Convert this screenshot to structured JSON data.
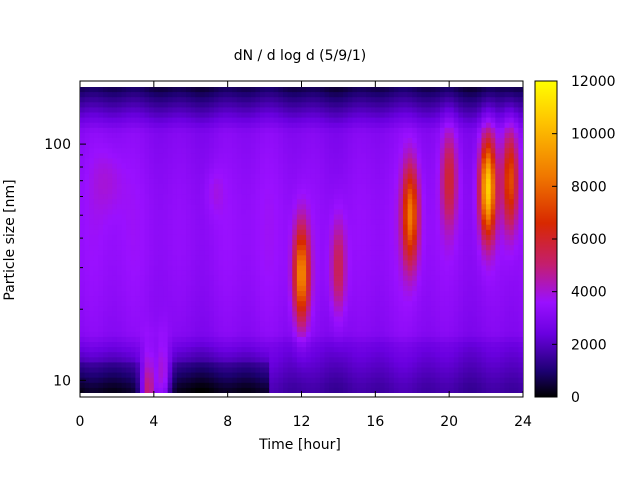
{
  "chart_data": {
    "type": "heatmap",
    "title": "dN / d log d (5/9/1)",
    "xlabel": "Time [hour]",
    "ylabel": "Particle size [nm]",
    "xlim": [
      0,
      24
    ],
    "ylim": [
      8.5,
      185
    ],
    "y_scale": "log",
    "x_ticks": [
      0,
      4,
      8,
      12,
      16,
      20,
      24
    ],
    "y_ticks": [
      10,
      100
    ],
    "colorbar": {
      "min": 0,
      "max": 12000,
      "ticks": [
        0,
        2000,
        4000,
        6000,
        8000,
        10000,
        12000
      ],
      "palette": [
        "#000000",
        "#1c0070",
        "#6a00e0",
        "#9a10ff",
        "#c41e6e",
        "#d82800",
        "#f07800",
        "#ffc800",
        "#ffff00"
      ]
    },
    "hotspots": [
      {
        "time": 12.0,
        "size_nm": 28,
        "value": 9000
      },
      {
        "time": 14.0,
        "size_nm": 30,
        "value": 5500
      },
      {
        "time": 17.9,
        "size_nm": 50,
        "value": 8500
      },
      {
        "time": 22.1,
        "size_nm": 65,
        "value": 10800
      },
      {
        "time": 23.3,
        "size_nm": 70,
        "value": 7500
      },
      {
        "time": 20.0,
        "size_nm": 70,
        "value": 6000
      },
      {
        "time": 3.7,
        "size_nm": 9,
        "value": 5000
      },
      {
        "time": 4.5,
        "size_nm": 11,
        "value": 4000
      }
    ]
  }
}
